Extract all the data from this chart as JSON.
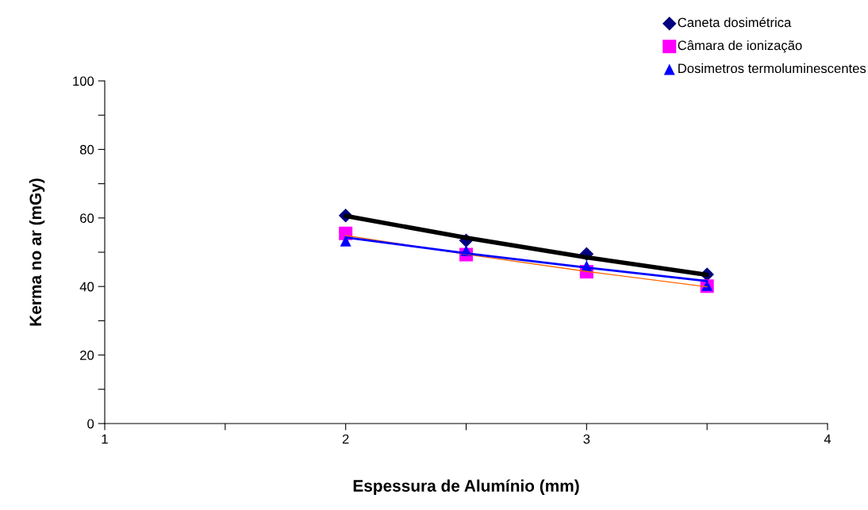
{
  "chart_data": {
    "type": "scatter",
    "xlabel": "Espessura de Alumínio (mm)",
    "ylabel": "Kerma no ar (mGy)",
    "x": [
      2,
      2.5,
      3,
      3.5
    ],
    "series": [
      {
        "name": "Caneta dosimétrica",
        "color": "#000080",
        "marker": "diamond",
        "values": [
          60.7,
          53.4,
          49.5,
          43.5
        ]
      },
      {
        "name": "Câmara de ionização",
        "color": "#ff00ff",
        "marker": "square",
        "values": [
          55.5,
          49.3,
          44.3,
          40.1
        ]
      },
      {
        "name": "Dosimetros termoluminescentes",
        "color": "#0000ff",
        "marker": "triangle",
        "values": [
          53.3,
          50.5,
          46.0,
          40.3
        ]
      },
      {
        "type": "line",
        "color": "#000000",
        "line_style": "solid",
        "values": [
          60.6,
          54.2,
          48.5,
          43.4
        ]
      },
      {
        "type": "line",
        "color": "#ff6600",
        "line_style": "solid",
        "values": [
          54.9,
          49.4,
          44.4,
          39.9
        ]
      },
      {
        "type": "line",
        "color": "#0000ff",
        "line_style": "solid",
        "values": [
          54.3,
          49.7,
          45.5,
          41.6
        ]
      }
    ],
    "xlim": [
      1,
      4
    ],
    "xticks": [
      1,
      {
        "value": 1.5,
        "label": null
      },
      2,
      {
        "value": 2.5,
        "label": null
      },
      3,
      {
        "value": 3.5,
        "label": null
      },
      4
    ],
    "ylim": [
      0,
      100
    ],
    "yticks": [
      0,
      {
        "value": 10,
        "label": null
      },
      20,
      {
        "value": 30,
        "label": null
      },
      40,
      {
        "value": 50,
        "label": null
      },
      60,
      {
        "value": 70,
        "label": null
      },
      80,
      {
        "value": 90,
        "label": null
      },
      100
    ],
    "grid": false,
    "legend": "top right"
  }
}
